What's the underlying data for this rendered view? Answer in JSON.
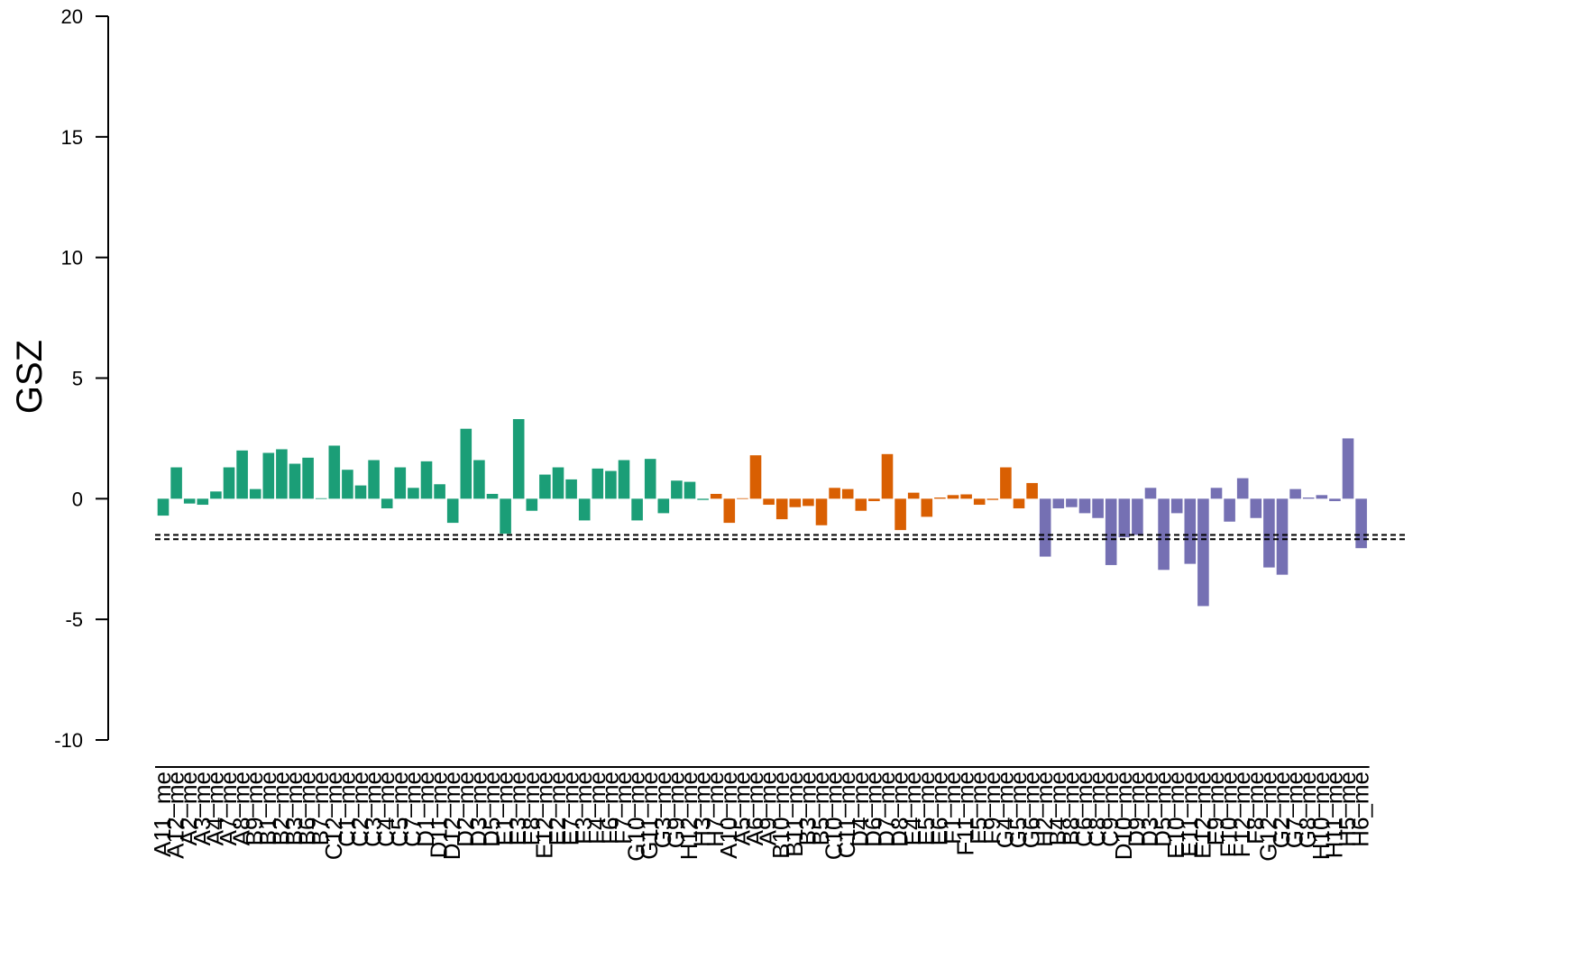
{
  "chart_data": {
    "type": "bar",
    "y_label": "GSZ",
    "ylim": [
      -10,
      20
    ],
    "yticks": [
      -10,
      -5,
      0,
      5,
      10,
      15,
      20
    ],
    "hlines": [
      -1.5,
      -1.68
    ],
    "series": [
      {
        "color": "#1b9e77",
        "categories": [
          "A11_me",
          "A12_me",
          "A2_me",
          "A3_me",
          "A4_me",
          "A7_me",
          "A8_me",
          "B9_me",
          "B1_me",
          "B2_me",
          "B3_me",
          "B6_me",
          "B7_me",
          "C12_me",
          "C1_me",
          "C2_me",
          "C3_me",
          "C4_me",
          "C5_me",
          "C7_me",
          "D1_me",
          "D11_me",
          "D12_me",
          "D2_me",
          "D3_me",
          "D5_me",
          "E1_me",
          "E3_me",
          "E8_me",
          "E12_me",
          "E2_me",
          "E7_me",
          "F3_me",
          "F4_me",
          "F6_me",
          "F7_me",
          "G10_me",
          "G11_me",
          "G3_me",
          "G9_me",
          "H12_me",
          "H3_me"
        ],
        "values": [
          -0.7,
          1.3,
          -0.2,
          -0.25,
          0.3,
          1.3,
          2.0,
          0.4,
          1.9,
          2.05,
          1.45,
          1.7,
          0.02,
          2.2,
          1.2,
          0.55,
          1.6,
          -0.4,
          1.3,
          0.45,
          1.55,
          0.6,
          -1.0,
          2.9,
          1.6,
          0.2,
          -1.45,
          3.3,
          -0.5,
          1.0,
          1.3,
          0.8,
          -0.9,
          1.25,
          1.15,
          1.6,
          -0.9,
          1.65,
          -0.6,
          0.75,
          0.7,
          -0.05
        ]
      },
      {
        "color": "#d95f02",
        "categories": [
          "H7_me",
          "A10_me",
          "A5_me",
          "A6_me",
          "A9_me",
          "B10_me",
          "B11_me",
          "B3_me",
          "B5_me",
          "C10_me",
          "C11_me",
          "D4_me",
          "D6_me",
          "D7_me",
          "D8_me",
          "E4_me",
          "E5_me",
          "E6_me",
          "F1_me",
          "F11_me",
          "F5_me",
          "F9_me",
          "G4_me",
          "G5_me",
          "G6_me"
        ],
        "values": [
          0.2,
          -1.0,
          0.02,
          1.8,
          -0.25,
          -0.85,
          -0.35,
          -0.3,
          -1.1,
          0.45,
          0.4,
          -0.5,
          -0.1,
          1.85,
          -1.3,
          0.25,
          -0.75,
          0.05,
          0.15,
          0.18,
          -0.25,
          -0.05,
          1.3,
          -0.4,
          0.65
        ]
      },
      {
        "color": "#7570b3",
        "categories": [
          "H2_me",
          "B4_me",
          "B8_me",
          "C6_me",
          "C8_me",
          "C9_me",
          "D10_me",
          "D9_me",
          "D3_me",
          "D5_me",
          "E10_me",
          "E11_me",
          "E12_me",
          "E9_me",
          "F10_me",
          "F12_me",
          "F8_me",
          "G12_me",
          "G2_me",
          "G7_me",
          "G8_me",
          "H10_me",
          "H11_me",
          "H5_me",
          "H6_me"
        ],
        "values": [
          -2.4,
          -0.4,
          -0.35,
          -0.6,
          -0.8,
          -2.75,
          -1.6,
          -1.5,
          0.45,
          -2.95,
          -0.6,
          -2.7,
          -4.45,
          0.45,
          -0.95,
          0.85,
          -0.8,
          -2.85,
          -3.15,
          0.4,
          0.05,
          0.15,
          -0.1,
          2.5,
          -2.05
        ]
      }
    ]
  }
}
